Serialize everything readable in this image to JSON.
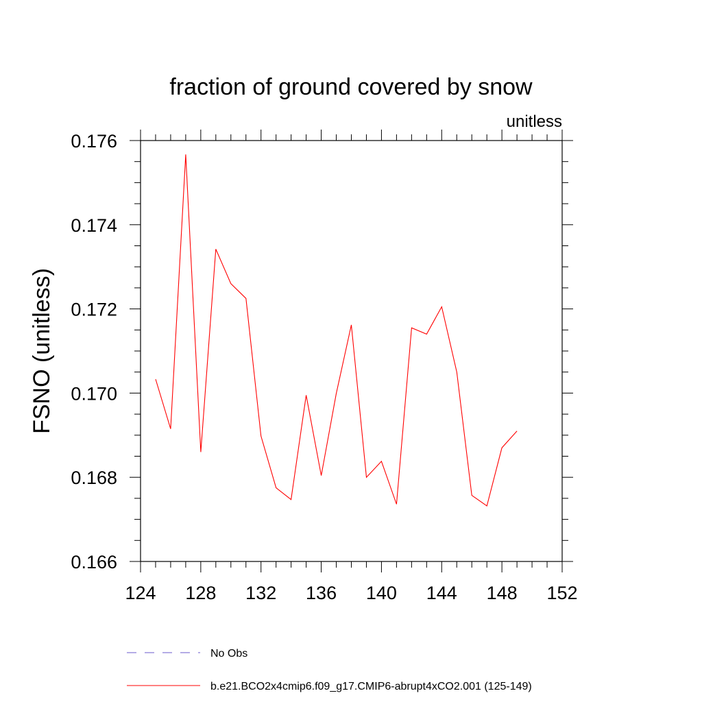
{
  "chart_data": {
    "type": "line",
    "title": "fraction of ground covered by snow",
    "units_label": "unitless",
    "ylabel": "FSNO  (unitless)",
    "xlabel": "",
    "xlim": [
      124,
      152
    ],
    "ylim": [
      0.166,
      0.176
    ],
    "x_ticks": [
      124,
      128,
      132,
      136,
      140,
      144,
      148,
      152
    ],
    "y_ticks": [
      0.166,
      0.168,
      0.17,
      0.172,
      0.174,
      0.176
    ],
    "y_tick_labels": [
      "0.166",
      "0.168",
      "0.170",
      "0.172",
      "0.174",
      "0.176"
    ],
    "grid": false,
    "legend_position": "bottom",
    "series": [
      {
        "name": "b.e21.BCO2x4cmip6.f09_g17.CMIP6-abrupt4xCO2.001 (125-149)",
        "color": "#ff0000",
        "style": "solid",
        "x": [
          125,
          126,
          127,
          128,
          129,
          130,
          131,
          132,
          133,
          134,
          135,
          136,
          137,
          138,
          139,
          140,
          141,
          142,
          143,
          144,
          145,
          146,
          147,
          148,
          149
        ],
        "values": [
          0.17033,
          0.16915,
          0.17567,
          0.1686,
          0.17342,
          0.1726,
          0.17225,
          0.16898,
          0.16775,
          0.16747,
          0.16995,
          0.16804,
          0.16999,
          0.17162,
          0.168,
          0.16838,
          0.16736,
          0.17155,
          0.1714,
          0.17205,
          0.1705,
          0.16757,
          0.16732,
          0.1687,
          0.1691
        ]
      }
    ],
    "legend": [
      {
        "name": "No Obs",
        "color": "#6a5acd",
        "style": "dashed"
      },
      {
        "name": "b.e21.BCO2x4cmip6.f09_g17.CMIP6-abrupt4xCO2.001 (125-149)",
        "color": "#ff0000",
        "style": "solid"
      }
    ]
  }
}
